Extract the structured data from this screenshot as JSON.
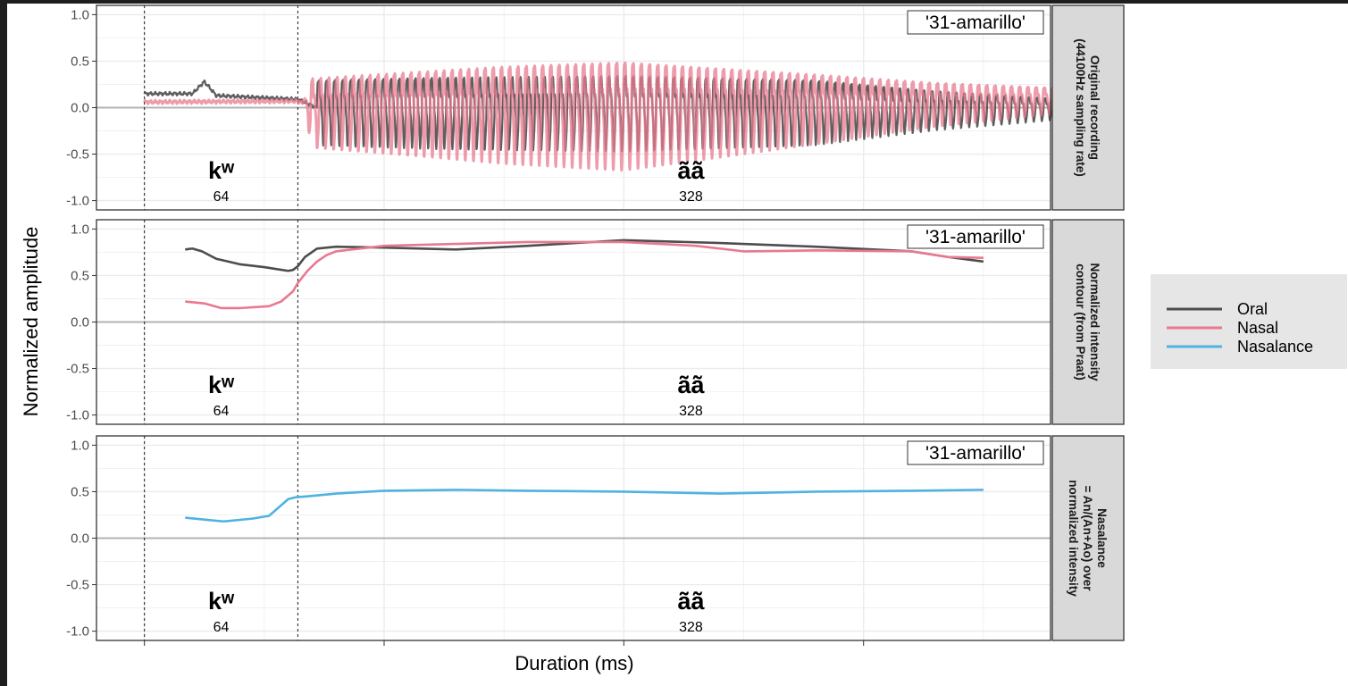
{
  "x_axis_title": "Duration (ms)",
  "y_axis_title": "Normalized amplitude",
  "word_label": "'31-amarillo'",
  "segments": [
    {
      "symbol": "kʷ",
      "duration": "64"
    },
    {
      "symbol": "ã̃ã̀",
      "duration": "328"
    }
  ],
  "legend": {
    "items": [
      {
        "label": "Oral",
        "color": "#4d4d4d"
      },
      {
        "label": "Nasal",
        "color": "#e8798f"
      },
      {
        "label": "Nasalance",
        "color": "#4fb3e0"
      }
    ]
  },
  "colors": {
    "oral": "#4d4d4d",
    "nasal": "#e8798f",
    "nasalance": "#4fb3e0",
    "panel_bg": "#ffffff",
    "grid": "#ebebeb",
    "strip_bg": "#d9d9d9"
  },
  "chart_data": [
    {
      "type": "line",
      "strip_label": [
        "Original recording",
        "(44100Hz sampling rate)"
      ],
      "ylim": [
        -1.1,
        1.1
      ],
      "y_ticks": [
        "1.0",
        "0.5",
        "0.0",
        "-0.5",
        "-1.0"
      ],
      "xlim": [
        -20,
        378
      ],
      "boundaries_ms": [
        0,
        64,
        392
      ],
      "series": [
        {
          "name": "Oral",
          "kind": "waveform",
          "x_range": [
            0,
            392
          ],
          "onset_ms": 72,
          "periods": 95,
          "amplitude_env": {
            "x": [
              0,
              70,
              72,
              120,
              200,
              280,
              330,
              392
            ],
            "y": [
              0.0,
              0.0,
              0.3,
              0.33,
              0.35,
              0.3,
              0.18,
              0.08
            ]
          },
          "baseline_env": {
            "x": [
              0,
              20,
              25,
              30,
              64,
              72,
              392
            ],
            "y": [
              0.15,
              0.15,
              0.28,
              0.13,
              0.09,
              0.0,
              0.0
            ]
          }
        },
        {
          "name": "Nasal",
          "kind": "waveform",
          "x_range": [
            0,
            392
          ],
          "onset_ms": 66,
          "periods": 95,
          "amplitude_env": {
            "x": [
              0,
              66,
              70,
              150,
              200,
              280,
              330,
              392
            ],
            "y": [
              0.0,
              0.0,
              0.32,
              0.45,
              0.5,
              0.32,
              0.2,
              0.1
            ]
          },
          "baseline_env": {
            "x": [
              0,
              64,
              70,
              200,
              392
            ],
            "y": [
              0.06,
              0.07,
              0.0,
              0.0,
              0.1
            ]
          }
        }
      ]
    },
    {
      "type": "line",
      "strip_label": [
        "Normalized intensity",
        "contour (from Praat)"
      ],
      "ylim": [
        -1.1,
        1.1
      ],
      "y_ticks": [
        "1.0",
        "0.5",
        "0.0",
        "-0.5",
        "-1.0"
      ],
      "xlim": [
        -20,
        378
      ],
      "boundaries_ms": [
        0,
        64,
        392
      ],
      "series": [
        {
          "name": "Oral",
          "x": [
            17,
            20,
            24,
            30,
            40,
            50,
            55,
            60,
            62,
            64,
            67,
            72,
            80,
            100,
            130,
            160,
            200,
            240,
            280,
            320,
            335,
            350
          ],
          "y": [
            0.78,
            0.79,
            0.76,
            0.68,
            0.62,
            0.59,
            0.57,
            0.55,
            0.56,
            0.6,
            0.7,
            0.79,
            0.81,
            0.8,
            0.78,
            0.82,
            0.88,
            0.85,
            0.81,
            0.76,
            0.7,
            0.65
          ]
        },
        {
          "name": "Nasal",
          "x": [
            17,
            25,
            32,
            40,
            52,
            57,
            62,
            64,
            68,
            72,
            76,
            80,
            100,
            130,
            160,
            200,
            230,
            250,
            280,
            320,
            335,
            350
          ],
          "y": [
            0.22,
            0.2,
            0.15,
            0.15,
            0.17,
            0.22,
            0.33,
            0.42,
            0.55,
            0.65,
            0.72,
            0.76,
            0.82,
            0.84,
            0.86,
            0.86,
            0.82,
            0.76,
            0.77,
            0.76,
            0.7,
            0.69
          ]
        }
      ]
    },
    {
      "type": "line",
      "strip_label": [
        "Nasalance",
        "= An/(An+Ao) over",
        "normalized intensity"
      ],
      "ylim": [
        -1.1,
        1.1
      ],
      "y_ticks": [
        "1.0",
        "0.5",
        "0.0",
        "-0.5",
        "-1.0"
      ],
      "xlim": [
        -20,
        378
      ],
      "boundaries_ms": [
        0,
        64,
        392
      ],
      "series": [
        {
          "name": "Nasalance",
          "x": [
            17,
            25,
            33,
            45,
            52,
            56,
            60,
            63,
            68,
            80,
            100,
            130,
            160,
            200,
            240,
            280,
            320,
            350
          ],
          "y": [
            0.22,
            0.2,
            0.18,
            0.21,
            0.24,
            0.33,
            0.42,
            0.44,
            0.45,
            0.48,
            0.51,
            0.52,
            0.51,
            0.5,
            0.48,
            0.5,
            0.51,
            0.52
          ]
        }
      ]
    }
  ]
}
